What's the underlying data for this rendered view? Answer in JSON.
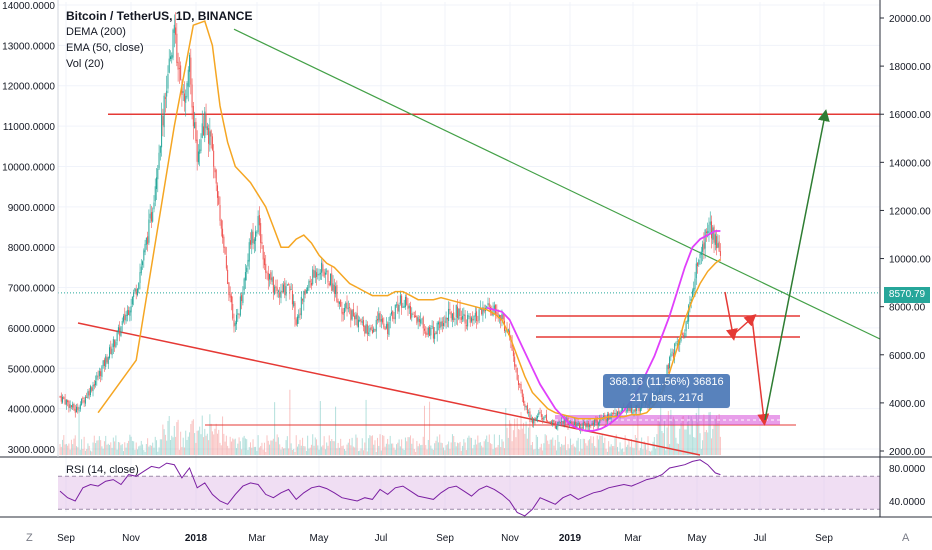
{
  "header": {
    "title": "Bitcoin / TetherUS, 1D, BINANCE",
    "indicators": [
      "DEMA (200)",
      "EMA (50, close)",
      "Vol (20)"
    ]
  },
  "rsi_label": "RSI (14, close)",
  "price_tag": "8570.79",
  "measure": {
    "line1": "368.16 (11.56%) 36816",
    "line2": "217 bars, 217d"
  },
  "corner": {
    "left": "Z",
    "right": "A"
  },
  "colors": {
    "candle_up": "#26a69a",
    "candle_down": "#ef5350",
    "dema": "#f5a623",
    "ema": "#e040fb",
    "red_line": "#e53935",
    "green_line": "#43a047",
    "dark_green": "#2e7d32",
    "rsi": "#7b1fa2",
    "rsi_band": "#e1bee7",
    "zone": "#d64fd8"
  },
  "chart_data": {
    "type": "candlestick",
    "left_axis": {
      "ticks": [
        "3000.0000",
        "4000.0000",
        "5000.0000",
        "6000.0000",
        "7000.0000",
        "8000.0000",
        "9000.0000",
        "10000.0000",
        "11000.0000",
        "12000.0000",
        "13000.0000",
        "14000.0000"
      ],
      "range": [
        3000,
        14000
      ]
    },
    "right_axis": {
      "ticks": [
        "20000.00",
        "18000.00",
        "16000.00",
        "14000.00",
        "12000.00",
        "10000.00",
        "8000.00",
        "6000.00",
        "4000.00",
        "2000.00"
      ],
      "range": [
        2000,
        20000
      ]
    },
    "x_axis": {
      "ticks": [
        "Sep",
        "Nov",
        "2018",
        "Mar",
        "May",
        "Jul",
        "Sep",
        "Nov",
        "2019",
        "Mar",
        "May",
        "Jul",
        "Sep"
      ],
      "bold": [
        "2018",
        "2019"
      ]
    },
    "rsi_axis": {
      "ticks": [
        "80.0000",
        "40.0000"
      ]
    },
    "price_path": [
      [
        0,
        4300
      ],
      [
        6,
        4150
      ],
      [
        12,
        3950
      ],
      [
        18,
        4200
      ],
      [
        24,
        4500
      ],
      [
        30,
        4800
      ],
      [
        36,
        5200
      ],
      [
        42,
        5600
      ],
      [
        48,
        6000
      ],
      [
        54,
        6500
      ],
      [
        60,
        7000
      ],
      [
        66,
        7800
      ],
      [
        72,
        8800
      ],
      [
        78,
        10500
      ],
      [
        84,
        12000
      ],
      [
        90,
        13500
      ],
      [
        96,
        11500
      ],
      [
        102,
        12500
      ],
      [
        108,
        10000
      ],
      [
        114,
        11200
      ],
      [
        120,
        10500
      ],
      [
        126,
        8500
      ],
      [
        132,
        7200
      ],
      [
        138,
        6000
      ],
      [
        144,
        7000
      ],
      [
        150,
        8200
      ],
      [
        156,
        8600
      ],
      [
        162,
        7500
      ],
      [
        168,
        7000
      ],
      [
        174,
        6800
      ],
      [
        180,
        7200
      ],
      [
        186,
        6200
      ],
      [
        192,
        6800
      ],
      [
        198,
        7200
      ],
      [
        204,
        7500
      ],
      [
        210,
        7300
      ],
      [
        216,
        7000
      ],
      [
        222,
        6500
      ],
      [
        228,
        6400
      ],
      [
        234,
        6200
      ],
      [
        240,
        6000
      ],
      [
        246,
        5800
      ],
      [
        252,
        6300
      ],
      [
        258,
        6000
      ],
      [
        264,
        6500
      ],
      [
        270,
        6700
      ],
      [
        276,
        6400
      ],
      [
        282,
        6200
      ],
      [
        288,
        6000
      ],
      [
        294,
        5900
      ],
      [
        300,
        6100
      ],
      [
        306,
        6300
      ],
      [
        312,
        6400
      ],
      [
        318,
        6300
      ],
      [
        324,
        6100
      ],
      [
        330,
        6300
      ],
      [
        336,
        6500
      ],
      [
        342,
        6400
      ],
      [
        348,
        6200
      ],
      [
        354,
        5800
      ],
      [
        360,
        4800
      ],
      [
        366,
        4100
      ],
      [
        372,
        3700
      ],
      [
        378,
        3900
      ],
      [
        384,
        3700
      ],
      [
        390,
        3600
      ],
      [
        396,
        3650
      ],
      [
        402,
        3700
      ],
      [
        408,
        3550
      ],
      [
        414,
        3600
      ],
      [
        420,
        3650
      ],
      [
        426,
        3700
      ],
      [
        432,
        3800
      ],
      [
        438,
        3900
      ],
      [
        444,
        3950
      ],
      [
        450,
        4000
      ],
      [
        456,
        4050
      ],
      [
        462,
        4100
      ],
      [
        468,
        4200
      ],
      [
        474,
        4500
      ],
      [
        480,
        5200
      ],
      [
        486,
        5600
      ],
      [
        492,
        6000
      ],
      [
        498,
        7000
      ],
      [
        504,
        7800
      ],
      [
        510,
        8500
      ],
      [
        516,
        8200
      ],
      [
        520,
        7600
      ]
    ],
    "dema_200_path": [
      [
        30,
        3900
      ],
      [
        60,
        5200
      ],
      [
        90,
        11000
      ],
      [
        105,
        13500
      ],
      [
        114,
        13600
      ],
      [
        120,
        13000
      ],
      [
        126,
        11500
      ],
      [
        132,
        10600
      ],
      [
        138,
        10000
      ],
      [
        144,
        9800
      ],
      [
        150,
        9600
      ],
      [
        156,
        9300
      ],
      [
        162,
        9000
      ],
      [
        168,
        8500
      ],
      [
        174,
        8000
      ],
      [
        180,
        8000
      ],
      [
        186,
        8200
      ],
      [
        192,
        8300
      ],
      [
        198,
        8100
      ],
      [
        204,
        7800
      ],
      [
        210,
        7600
      ],
      [
        216,
        7500
      ],
      [
        222,
        7300
      ],
      [
        228,
        7100
      ],
      [
        234,
        7000
      ],
      [
        240,
        6900
      ],
      [
        246,
        6800
      ],
      [
        252,
        6800
      ],
      [
        258,
        6800
      ],
      [
        264,
        6900
      ],
      [
        270,
        6900
      ],
      [
        276,
        6800
      ],
      [
        282,
        6700
      ],
      [
        288,
        6700
      ],
      [
        294,
        6700
      ],
      [
        300,
        6750
      ],
      [
        306,
        6700
      ],
      [
        312,
        6650
      ],
      [
        318,
        6600
      ],
      [
        324,
        6550
      ],
      [
        330,
        6500
      ],
      [
        336,
        6450
      ],
      [
        342,
        6350
      ],
      [
        348,
        6200
      ],
      [
        354,
        5800
      ],
      [
        360,
        5300
      ],
      [
        366,
        4800
      ],
      [
        372,
        4400
      ],
      [
        378,
        4200
      ],
      [
        384,
        4000
      ],
      [
        390,
        3900
      ],
      [
        396,
        3850
      ],
      [
        402,
        3800
      ],
      [
        408,
        3750
      ],
      [
        414,
        3750
      ],
      [
        420,
        3750
      ],
      [
        426,
        3750
      ],
      [
        432,
        3800
      ],
      [
        438,
        3800
      ],
      [
        444,
        3800
      ],
      [
        450,
        3850
      ],
      [
        456,
        3850
      ],
      [
        462,
        3900
      ],
      [
        468,
        4100
      ],
      [
        474,
        4400
      ],
      [
        480,
        4900
      ],
      [
        486,
        5500
      ],
      [
        492,
        6200
      ],
      [
        498,
        6700
      ],
      [
        504,
        7100
      ],
      [
        510,
        7400
      ],
      [
        516,
        7600
      ],
      [
        520,
        7700
      ]
    ],
    "ema_50_path": [
      [
        336,
        6500
      ],
      [
        348,
        6400
      ],
      [
        354,
        6200
      ],
      [
        360,
        5800
      ],
      [
        366,
        5400
      ],
      [
        372,
        5000
      ],
      [
        378,
        4600
      ],
      [
        384,
        4300
      ],
      [
        390,
        4000
      ],
      [
        396,
        3800
      ],
      [
        402,
        3600
      ],
      [
        408,
        3500
      ],
      [
        414,
        3450
      ],
      [
        420,
        3450
      ],
      [
        426,
        3500
      ],
      [
        432,
        3600
      ],
      [
        438,
        3750
      ],
      [
        444,
        3950
      ],
      [
        450,
        4200
      ],
      [
        456,
        4500
      ],
      [
        462,
        4900
      ],
      [
        468,
        5300
      ],
      [
        474,
        5800
      ],
      [
        480,
        6300
      ],
      [
        486,
        6900
      ],
      [
        492,
        7500
      ],
      [
        498,
        8000
      ],
      [
        504,
        8200
      ],
      [
        510,
        8300
      ],
      [
        516,
        8400
      ],
      [
        520,
        8400
      ]
    ],
    "annotations": {
      "resistance_right": 16000,
      "current_price": 8570.79,
      "triangle_top_start": [
        137,
        13400
      ],
      "triangle_top_end": [
        640,
        7000
      ],
      "triangle_bottom_start": [
        18,
        6100
      ],
      "triangle_bottom_end": [
        640,
        2900
      ],
      "horizontal_levels": [
        7700,
        6800,
        3450
      ]
    },
    "rsi_path": [
      [
        0,
        52
      ],
      [
        6,
        44
      ],
      [
        12,
        40
      ],
      [
        18,
        56
      ],
      [
        24,
        60
      ],
      [
        30,
        58
      ],
      [
        36,
        64
      ],
      [
        42,
        66
      ],
      [
        48,
        60
      ],
      [
        54,
        72
      ],
      [
        60,
        70
      ],
      [
        66,
        76
      ],
      [
        72,
        82
      ],
      [
        78,
        80
      ],
      [
        84,
        86
      ],
      [
        90,
        84
      ],
      [
        96,
        68
      ],
      [
        102,
        80
      ],
      [
        108,
        56
      ],
      [
        114,
        62
      ],
      [
        120,
        48
      ],
      [
        126,
        40
      ],
      [
        132,
        36
      ],
      [
        138,
        48
      ],
      [
        144,
        58
      ],
      [
        150,
        62
      ],
      [
        156,
        60
      ],
      [
        162,
        48
      ],
      [
        168,
        44
      ],
      [
        174,
        50
      ],
      [
        180,
        54
      ],
      [
        186,
        42
      ],
      [
        192,
        50
      ],
      [
        198,
        56
      ],
      [
        204,
        58
      ],
      [
        210,
        55
      ],
      [
        216,
        50
      ],
      [
        222,
        44
      ],
      [
        228,
        42
      ],
      [
        234,
        40
      ],
      [
        240,
        44
      ],
      [
        246,
        42
      ],
      [
        252,
        54
      ],
      [
        258,
        48
      ],
      [
        264,
        56
      ],
      [
        270,
        58
      ],
      [
        276,
        52
      ],
      [
        282,
        46
      ],
      [
        288,
        44
      ],
      [
        294,
        42
      ],
      [
        300,
        50
      ],
      [
        306,
        56
      ],
      [
        312,
        58
      ],
      [
        318,
        52
      ],
      [
        324,
        46
      ],
      [
        330,
        54
      ],
      [
        336,
        58
      ],
      [
        342,
        54
      ],
      [
        348,
        48
      ],
      [
        354,
        40
      ],
      [
        360,
        26
      ],
      [
        366,
        22
      ],
      [
        372,
        30
      ],
      [
        378,
        44
      ],
      [
        384,
        40
      ],
      [
        390,
        36
      ],
      [
        396,
        44
      ],
      [
        402,
        48
      ],
      [
        408,
        42
      ],
      [
        414,
        46
      ],
      [
        420,
        50
      ],
      [
        426,
        52
      ],
      [
        432,
        56
      ],
      [
        438,
        58
      ],
      [
        444,
        60
      ],
      [
        450,
        58
      ],
      [
        456,
        62
      ],
      [
        462,
        66
      ],
      [
        468,
        68
      ],
      [
        474,
        72
      ],
      [
        480,
        80
      ],
      [
        486,
        82
      ],
      [
        492,
        84
      ],
      [
        498,
        88
      ],
      [
        504,
        90
      ],
      [
        510,
        84
      ],
      [
        516,
        74
      ],
      [
        520,
        72
      ]
    ]
  }
}
